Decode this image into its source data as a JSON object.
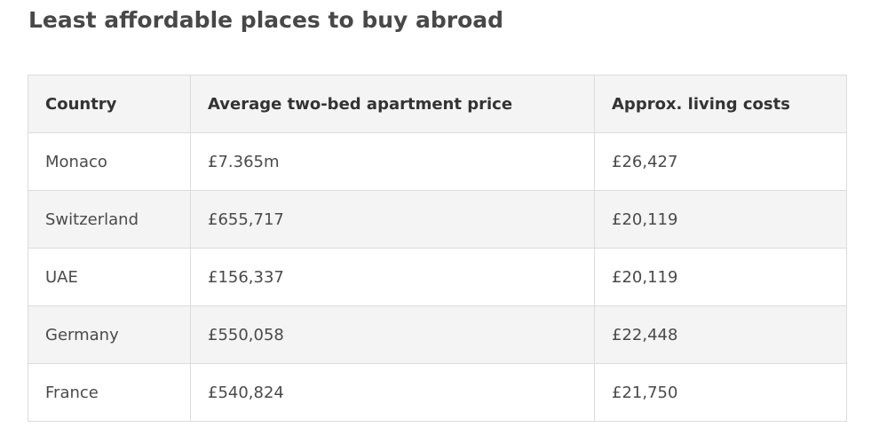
{
  "title": "Least affordable places to buy abroad",
  "table": {
    "header": [
      "Country",
      "Average two-bed apartment price",
      "Approx. living costs"
    ],
    "rows": [
      [
        "Monaco",
        "£7.365m",
        "£26,427"
      ],
      [
        "Switzerland",
        "£655,717",
        "£20,119"
      ],
      [
        "UAE",
        "£156,337",
        "£20,119"
      ],
      [
        "Germany",
        "£550,058",
        "£22,448"
      ],
      [
        "France",
        "£540,824",
        "£21,750"
      ]
    ]
  }
}
